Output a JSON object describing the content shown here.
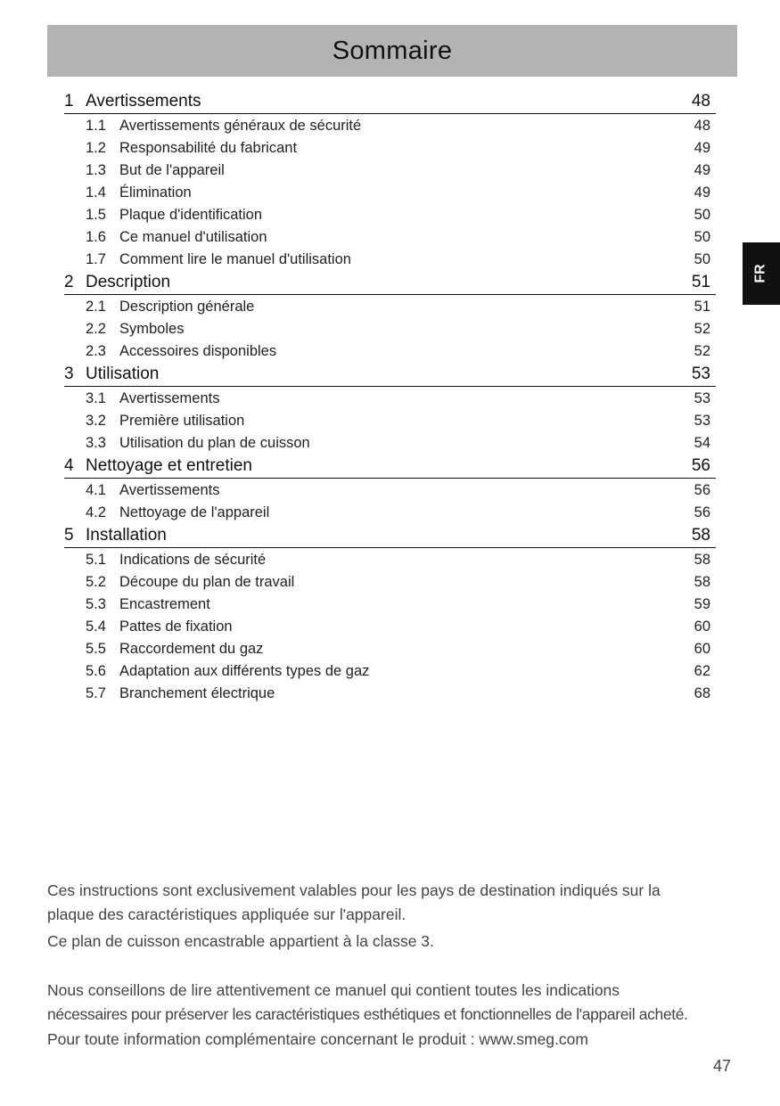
{
  "header": {
    "title": "Sommaire"
  },
  "language_tab": "FR",
  "toc": [
    {
      "num": "1",
      "title": "Avertissements",
      "page": "48",
      "items": [
        {
          "num": "1.1",
          "title": "Avertissements généraux de sécurité",
          "page": "48"
        },
        {
          "num": "1.2",
          "title": "Responsabilité du fabricant",
          "page": "49"
        },
        {
          "num": "1.3",
          "title": "But de l'appareil",
          "page": "49"
        },
        {
          "num": "1.4",
          "title": "Élimination",
          "page": "49"
        },
        {
          "num": "1.5",
          "title": "Plaque d'identification",
          "page": "50"
        },
        {
          "num": "1.6",
          "title": "Ce manuel d'utilisation",
          "page": "50"
        },
        {
          "num": "1.7",
          "title": "Comment lire le manuel d'utilisation",
          "page": "50"
        }
      ]
    },
    {
      "num": "2",
      "title": "Description",
      "page": "51",
      "items": [
        {
          "num": "2.1",
          "title": "Description générale",
          "page": "51"
        },
        {
          "num": "2.2",
          "title": "Symboles",
          "page": "52"
        },
        {
          "num": "2.3",
          "title": "Accessoires disponibles",
          "page": "52"
        }
      ]
    },
    {
      "num": "3",
      "title": "Utilisation",
      "page": "53",
      "items": [
        {
          "num": "3.1",
          "title": "Avertissements",
          "page": "53"
        },
        {
          "num": "3.2",
          "title": "Première utilisation",
          "page": "53"
        },
        {
          "num": "3.3",
          "title": "Utilisation du plan de cuisson",
          "page": "54"
        }
      ]
    },
    {
      "num": "4",
      "title": "Nettoyage et entretien",
      "page": "56",
      "items": [
        {
          "num": "4.1",
          "title": "Avertissements",
          "page": "56"
        },
        {
          "num": "4.2",
          "title": "Nettoyage de l'appareil",
          "page": "56"
        }
      ]
    },
    {
      "num": "5",
      "title": "Installation",
      "page": "58",
      "items": [
        {
          "num": "5.1",
          "title": "Indications de sécurité",
          "page": "58"
        },
        {
          "num": "5.2",
          "title": "Découpe du plan de travail",
          "page": "58"
        },
        {
          "num": "5.3",
          "title": "Encastrement",
          "page": "59"
        },
        {
          "num": "5.4",
          "title": "Pattes de fixation",
          "page": "60"
        },
        {
          "num": "5.5",
          "title": "Raccordement du gaz",
          "page": "60"
        },
        {
          "num": "5.6",
          "title": "Adaptation aux différents types de gaz",
          "page": "62"
        },
        {
          "num": "5.7",
          "title": "Branchement électrique",
          "page": "68"
        }
      ]
    }
  ],
  "notes": {
    "para1": [
      "Ces instructions sont exclusivement valables pour les pays de destination indiqués sur la",
      "plaque des caractéristiques appliquée sur l'appareil.",
      "Ce plan de cuisson encastrable appartient à la classe 3."
    ],
    "para2": [
      "Nous conseillons de lire attentivement ce manuel qui contient toutes les indications",
      "nécessaires pour préserver les caractéristiques esthétiques et fonctionnelles de l'appareil acheté.",
      "Pour toute information complémentaire concernant le produit : www.smeg.com"
    ]
  },
  "page_number": "47"
}
